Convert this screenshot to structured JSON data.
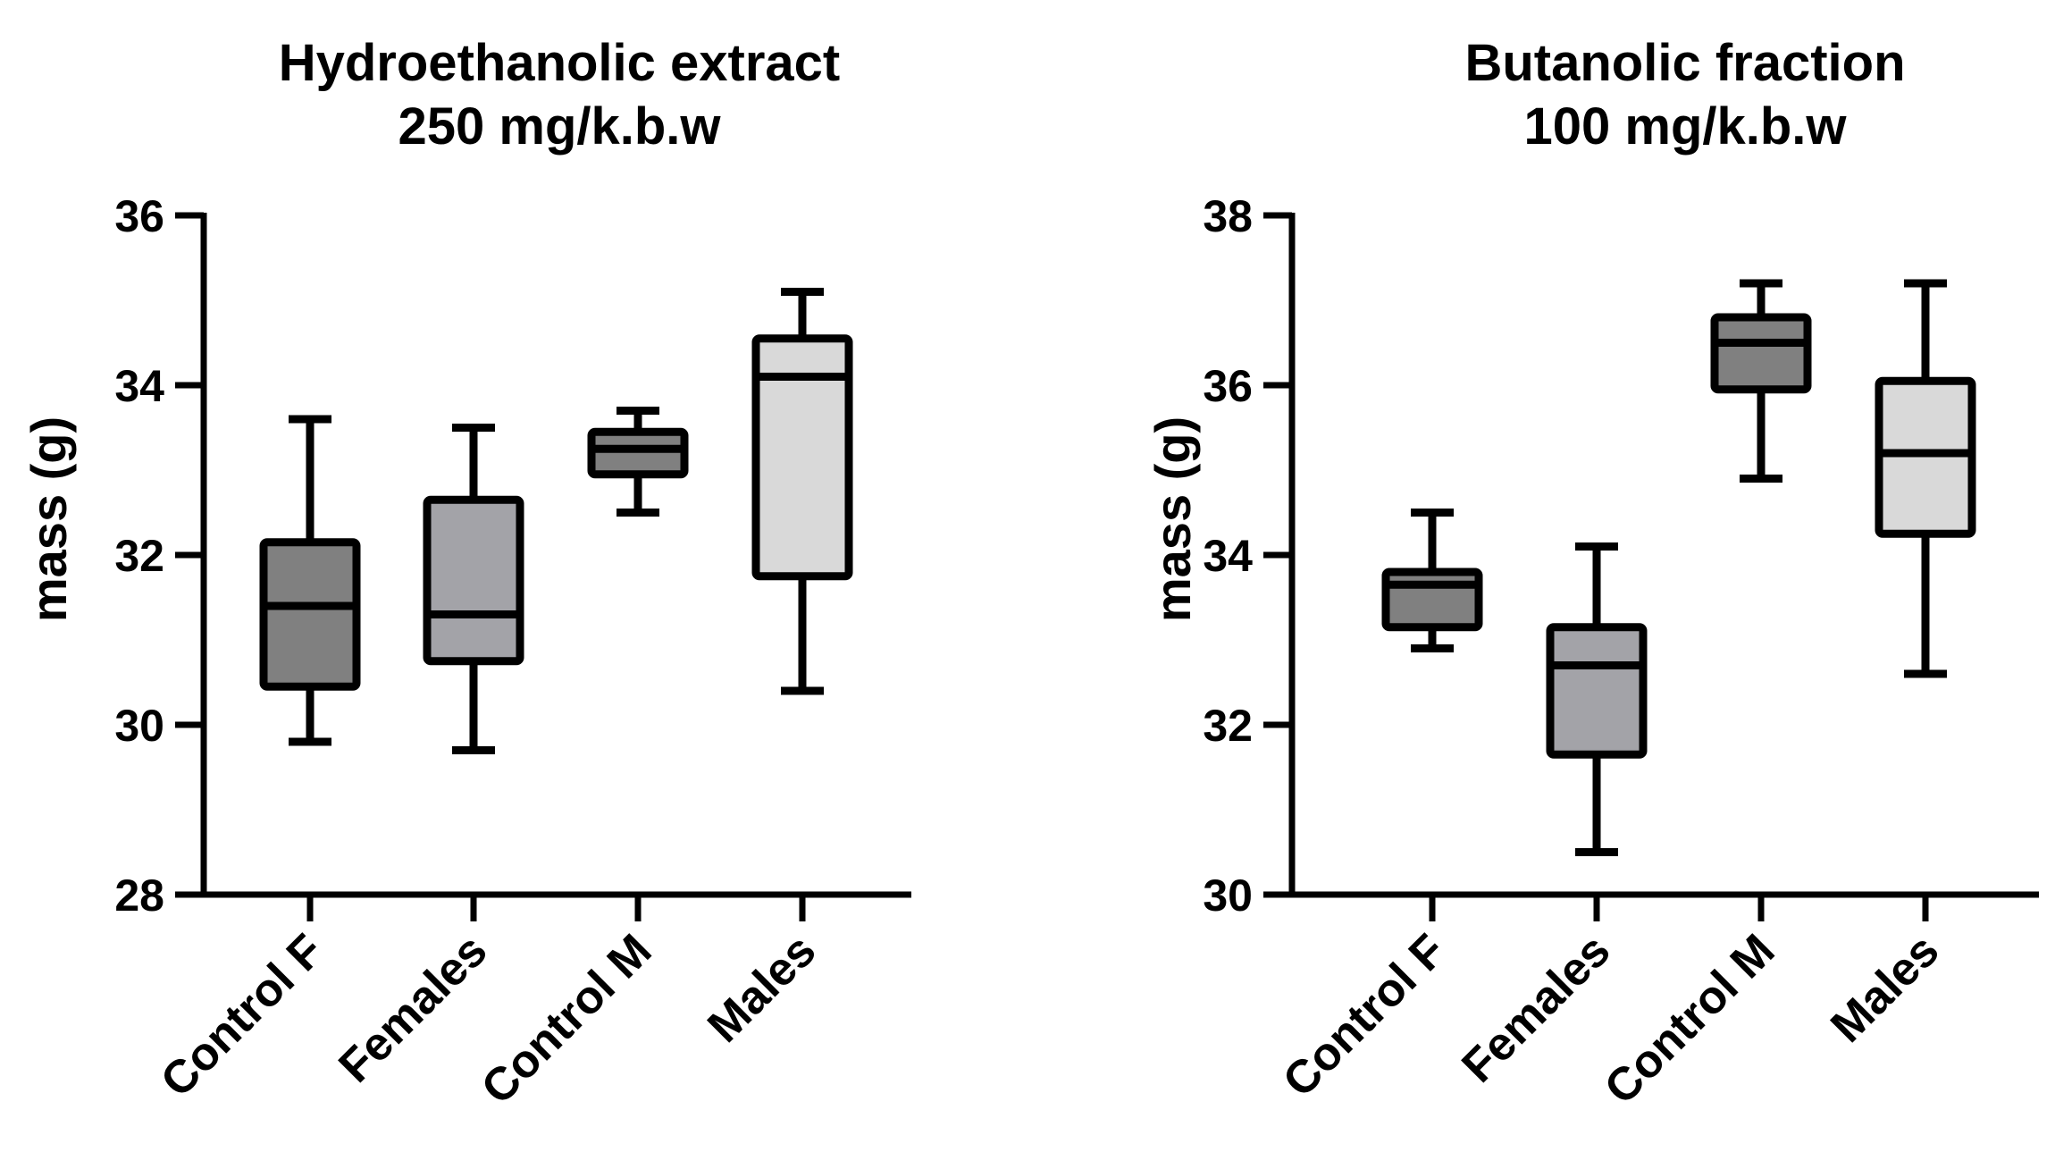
{
  "chart_data": [
    {
      "type": "box",
      "title_lines": [
        "Hydroethanolic extract",
        "250 mg/k.b.w"
      ],
      "xlabel": "",
      "ylabel": "mass (g)",
      "ylim": [
        28,
        36
      ],
      "yticks": [
        "28",
        "30",
        "32",
        "34",
        "36"
      ],
      "categories": [
        "Control F",
        "Females",
        "Control M",
        "Males"
      ],
      "colors": [
        "#808080",
        "#a3a3a8",
        "#808080",
        "#d9d9d9"
      ],
      "boxes": [
        {
          "name": "Control F",
          "min": 29.8,
          "q1": 30.45,
          "median": 31.4,
          "q3": 32.15,
          "max": 33.6
        },
        {
          "name": "Females",
          "min": 29.7,
          "q1": 30.75,
          "median": 31.3,
          "q3": 32.65,
          "max": 33.5
        },
        {
          "name": "Control M",
          "min": 32.5,
          "q1": 32.95,
          "median": 33.25,
          "q3": 33.45,
          "max": 33.7
        },
        {
          "name": "Males",
          "min": 30.4,
          "q1": 31.75,
          "median": 34.1,
          "q3": 34.55,
          "max": 35.1
        }
      ]
    },
    {
      "type": "box",
      "title_lines": [
        "Butanolic fraction",
        "100 mg/k.b.w"
      ],
      "xlabel": "",
      "ylabel": "mass (g)",
      "ylim": [
        30,
        38
      ],
      "yticks": [
        "30",
        "32",
        "34",
        "36",
        "38"
      ],
      "categories": [
        "Control F",
        "Females",
        "Control M",
        "Males"
      ],
      "colors": [
        "#808080",
        "#a3a3a8",
        "#808080",
        "#d9d9d9"
      ],
      "boxes": [
        {
          "name": "Control F",
          "min": 32.9,
          "q1": 33.15,
          "median": 33.65,
          "q3": 33.8,
          "max": 34.5
        },
        {
          "name": "Females",
          "min": 30.5,
          "q1": 31.65,
          "median": 32.7,
          "q3": 33.15,
          "max": 34.1
        },
        {
          "name": "Control M",
          "min": 34.9,
          "q1": 35.95,
          "median": 36.5,
          "q3": 36.8,
          "max": 37.2
        },
        {
          "name": "Males",
          "min": 32.6,
          "q1": 34.25,
          "median": 35.2,
          "q3": 36.05,
          "max": 37.2
        }
      ]
    }
  ]
}
